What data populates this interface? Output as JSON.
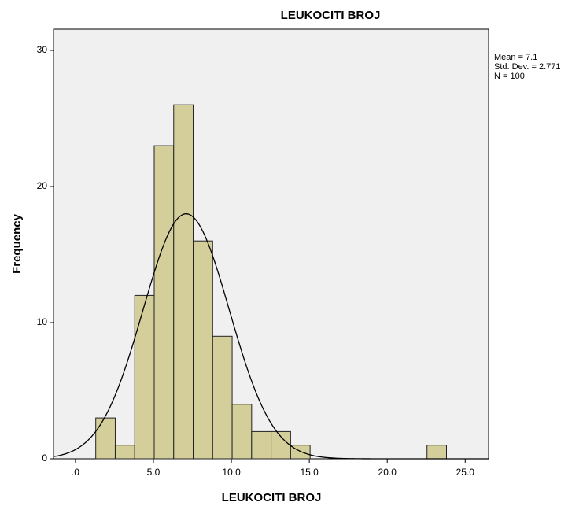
{
  "chart_data": {
    "type": "histogram",
    "title": "LEUKOCITI BROJ",
    "x_label": "LEUKOCITI BROJ",
    "y_label": "Frequency",
    "bins": [
      1.3,
      2.55,
      3.8,
      5.05,
      6.3,
      7.55,
      8.8,
      10.05,
      11.3,
      12.55,
      13.8,
      15.05,
      16.3,
      17.55,
      18.8,
      20.05,
      21.3,
      22.55,
      23.8
    ],
    "values": [
      3,
      1,
      12,
      23,
      26,
      16,
      9,
      4,
      2,
      2,
      1,
      0,
      0,
      0,
      0,
      0,
      0,
      1
    ],
    "color": "#d4cf9a",
    "xlim": [
      -1.41,
      26.5
    ],
    "xticks": [
      {
        "value": 0,
        "label": ".0"
      },
      {
        "value": 5,
        "label": "5.0"
      },
      {
        "value": 10,
        "label": "10.0"
      },
      {
        "value": 15,
        "label": "15.0"
      },
      {
        "value": 20,
        "label": "20.0"
      },
      {
        "value": 25,
        "label": "25.0"
      }
    ],
    "ylim": [
      0,
      31.56
    ],
    "yticks": [
      0,
      10,
      20,
      30
    ],
    "normal_curve": {
      "mean": {
        "value": 7.1,
        "label": "Mean = 7.1"
      },
      "std_dev": {
        "value": 2.771,
        "label": "Std. Dev. = 2.771"
      },
      "n": {
        "value": 100,
        "label": "N = 100"
      }
    }
  }
}
